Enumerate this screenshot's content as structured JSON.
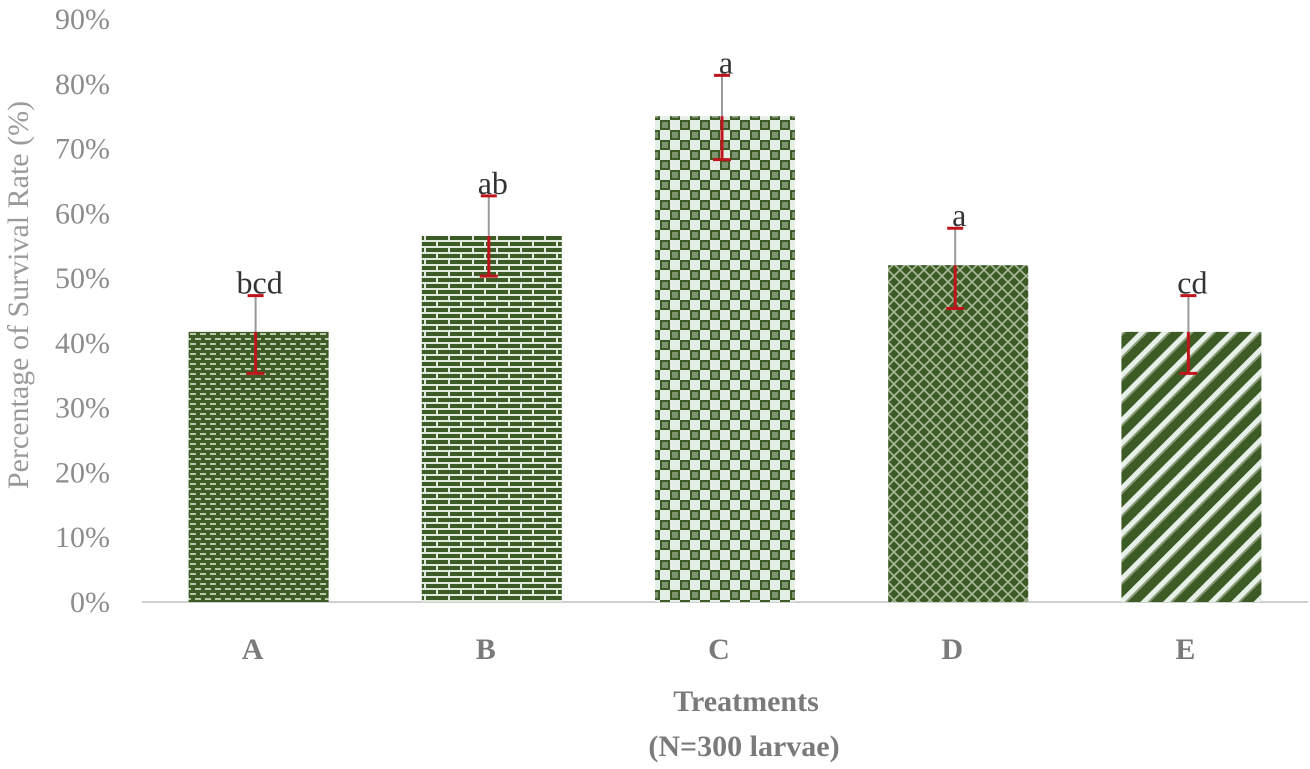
{
  "chart_data": {
    "type": "bar",
    "categories": [
      "A",
      "B",
      "C",
      "D",
      "E"
    ],
    "values": [
      41.7,
      56.5,
      75.0,
      52.0,
      41.7
    ],
    "error_low": [
      35.3,
      50.3,
      68.3,
      45.3,
      35.3
    ],
    "error_high": [
      47.3,
      62.7,
      81.3,
      57.7,
      47.3
    ],
    "significance_labels": [
      "bcd",
      "ab",
      "a",
      "a",
      "cd"
    ],
    "ylabel": "Percentage of Survival Rate (%)",
    "xlabel": "Treatments",
    "xlabel_sub": "(N=300 larvae)",
    "ylim": [
      0,
      90
    ],
    "yticks": [
      "0%",
      "10%",
      "20%",
      "30%",
      "40%",
      "50%",
      "60%",
      "70%",
      "80%",
      "90%"
    ],
    "grid": false,
    "colors": {
      "bar_dark": "#3d5c25",
      "bar_light": "#e4eee2",
      "bar_mid": "#8a9a78",
      "error_bar": "#c0141c",
      "error_stem": "#9a9a9a",
      "axis": "#cfcfcf"
    }
  }
}
